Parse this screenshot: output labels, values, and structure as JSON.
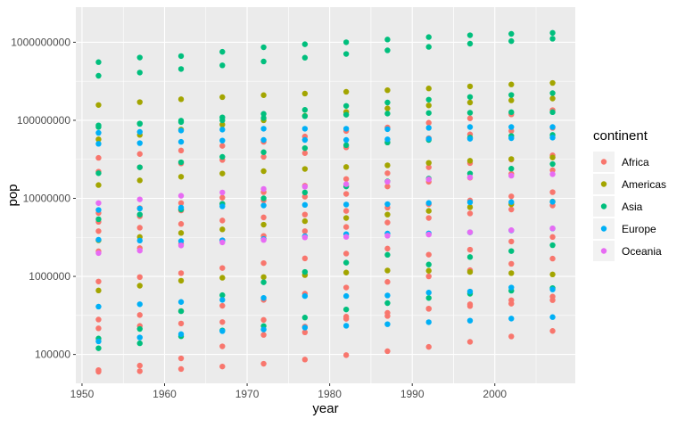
{
  "chart_data": {
    "type": "scatter",
    "xlabel": "year",
    "ylabel": "pop",
    "xlim": [
      1949.25,
      2009.75
    ],
    "ylim_log10": [
      4.63,
      9.45
    ],
    "y_scale": "log10",
    "grid": true,
    "legend_position": "right",
    "legend_title": "continent",
    "x_ticks": [
      "1950",
      "1960",
      "1970",
      "1980",
      "1990",
      "2000"
    ],
    "x_tick_values": [
      1950,
      1960,
      1970,
      1980,
      1990,
      2000
    ],
    "y_ticks": [
      "100000",
      "1000000",
      "10000000",
      "100000000",
      "1000000000"
    ],
    "y_tick_values": [
      100000.0,
      1000000.0,
      10000000.0,
      100000000.0,
      1000000000.0
    ],
    "x": [
      1952,
      1957,
      1962,
      1967,
      1972,
      1977,
      1982,
      1987,
      1992,
      1997,
      2002,
      2007
    ],
    "series": [
      {
        "name": "Africa",
        "color": "#F8766D",
        "rows": [
          [
            33000000.0,
            37000000.0,
            41000000.0,
            47000000.0,
            53000000.0,
            62000000.0,
            73000000.0,
            81000000.0,
            93000000.0,
            106000000.0,
            119000000.0,
            135000000.0
          ],
          [
            22000000.0,
            25000000.0,
            28000000.0,
            31000000.0,
            34000000.0,
            38000000.0,
            45000000.0,
            52000000.0,
            59000000.0,
            66000000.0,
            73000000.0,
            80000000.0
          ],
          [
            6500000.0,
            7500000.0,
            8700000.0,
            10200000.0,
            12000000.0,
            14500000.0,
            17700000.0,
            21000000.0,
            25000000.0,
            28300000.0,
            31400000.0,
            35600000.0
          ],
          [
            5000000.0,
            5900000.0,
            7000000.0,
            8500000.0,
            9400000.0,
            10500000.0,
            11400000.0,
            14200000.0,
            16300000.0,
            18400000.0,
            20600000.0,
            22900000.0
          ],
          [
            3800000.0,
            4200000.0,
            4700000.0,
            5200000.0,
            5700000.0,
            6200000.0,
            6900000.0,
            7600000.0,
            8400000.0,
            9400000.0,
            10600000.0,
            12000000.0
          ],
          [
            2100000.0,
            2300000.0,
            2600000.0,
            2900000.0,
            3300000.0,
            3800000.0,
            4300000.0,
            4900000.0,
            5600000.0,
            6400000.0,
            7200000.0,
            8100000.0
          ],
          [
            860000.0,
            980000.0,
            1100000.0,
            1280000.0,
            1480000.0,
            1700000.0,
            1960000.0,
            2270000.0,
            1900000.0,
            2200000.0,
            2800000.0,
            3200000.0
          ],
          [
            280000.0,
            320000.0,
            360000.0,
            420000.0,
            500000.0,
            600000.0,
            720000.0,
            850000.0,
            1000000.0,
            1200000.0,
            1450000.0,
            1690000.0
          ],
          [
            216000.0,
            232000.0,
            249000.0,
            260000.0,
            277000.0,
            192000.0,
            286000.0,
            341000.0,
            387000.0,
            439000.0,
            495000.0,
            551000.0
          ],
          [
            63000.0,
            72000.0,
            89000.0,
            127000.0,
            178000.0,
            228000.0,
            305000.0,
            311000.0,
            384000.0,
            417000.0,
            447000.0,
            496000.0
          ],
          [
            60000.0,
            61000.0,
            65000.0,
            70000.0,
            76000.0,
            86000.0,
            98000.0,
            110000.0,
            125000.0,
            145000.0,
            170000.0,
            200000.0
          ]
        ]
      },
      {
        "name": "Americas",
        "color": "#A3A500",
        "rows": [
          [
            157000000.0,
            171000000.0,
            186000000.0,
            198000000.0,
            210000000.0,
            220000000.0,
            232000000.0,
            243000000.0,
            256000000.0,
            272000000.0,
            288000000.0,
            301000000.0
          ],
          [
            57000000.0,
            65000000.0,
            76000000.0,
            88000000.0,
            100000000.0,
            114000000.0,
            128000000.0,
            142000000.0,
            155000000.0,
            169000000.0,
            180000000.0,
            190000000.0
          ],
          [
            14800000.0,
            17000000.0,
            18900000.0,
            20800000.0,
            22300000.0,
            23800000.0,
            25200000.0,
            26500000.0,
            28500000.0,
            30300000.0,
            31900000.0,
            33400000.0
          ],
          [
            2900000.0,
            3200000.0,
            3600000.0,
            4000000.0,
            4600000.0,
            5100000.0,
            5600000.0,
            6200000.0,
            6900000.0,
            7700000.0,
            8400000.0,
            9100000.0
          ],
          [
            660000.0,
            760000.0,
            880000.0,
            960000.0,
            980000.0,
            1040000.0,
            1120000.0,
            1190000.0,
            1180000.0,
            1140000.0,
            1100000.0,
            1060000.0
          ]
        ]
      },
      {
        "name": "Asia",
        "color": "#00BF7D",
        "rows": [
          [
            556000000.0,
            637000000.0,
            665000000.0,
            754000000.0,
            862000000.0,
            943000000.0,
            1000000000.0,
            1084000000.0,
            1165000000.0,
            1230000000.0,
            1280000000.0,
            1319000000.0
          ],
          [
            372000000.0,
            409000000.0,
            454000000.0,
            506000000.0,
            567000000.0,
            634000000.0,
            708000000.0,
            788000000.0,
            872000000.0,
            959000000.0,
            1034000000.0,
            1110000000.0
          ],
          [
            82000000.0,
            90000000.0,
            99000000.0,
            109000000.0,
            121000000.0,
            136000000.0,
            153000000.0,
            169000000.0,
            184000000.0,
            199000000.0,
            211000000.0,
            223000000.0
          ],
          [
            86000000.0,
            91000000.0,
            95000000.0,
            100000000.0,
            107000000.0,
            113000000.0,
            118000000.0,
            122000000.0,
            124000000.0,
            125000000.0,
            127000000.0,
            127000000.0
          ],
          [
            21000000.0,
            25000000.0,
            29000000.0,
            34000000.0,
            39000000.0,
            44000000.0,
            48000000.0,
            52000000.0,
            56000000.0,
            60000000.0,
            63000000.0,
            65000000.0
          ],
          [
            5400000.0,
            6200000.0,
            7200000.0,
            8500000.0,
            10000000.0,
            11900000.0,
            14200000.0,
            16500000.0,
            17900000.0,
            20800000.0,
            24000000.0,
            27500000.0
          ],
          [
            160000.0,
            212000.0,
            358000.0,
            575000.0,
            841000.0,
            1140000.0,
            1500000.0,
            1890000.0,
            1420000.0,
            1770000.0,
            2110000.0,
            2510000.0
          ],
          [
            120000.0,
            139000.0,
            171000.0,
            203000.0,
            231000.0,
            297000.0,
            377000.0,
            455000.0,
            529000.0,
            599000.0,
            656000.0,
            708000.0
          ]
        ]
      },
      {
        "name": "Europe",
        "color": "#00B0F6",
        "rows": [
          [
            69000000.0,
            71000000.0,
            74000000.0,
            76000000.0,
            78000000.0,
            78000000.0,
            78000000.0,
            77000000.0,
            80000000.0,
            82000000.0,
            82000000.0,
            82000000.0
          ],
          [
            50000000.0,
            51000000.0,
            53000000.0,
            55000000.0,
            56000000.0,
            56000000.0,
            56000000.0,
            57000000.0,
            58000000.0,
            58000000.0,
            59000000.0,
            60000000.0
          ],
          [
            7100000.0,
            7400000.0,
            7600000.0,
            7900000.0,
            8100000.0,
            8250000.0,
            8330000.0,
            8420000.0,
            8720000.0,
            8900000.0,
            8950000.0,
            9030000.0
          ],
          [
            2950000.0,
            2880000.0,
            2830000.0,
            2900000.0,
            3020000.0,
            3270000.0,
            3480000.0,
            3540000.0,
            3560000.0,
            3670000.0,
            3880000.0,
            4110000.0
          ],
          [
            410000.0,
            440000.0,
            470000.0,
            500000.0,
            530000.0,
            560000.0,
            560000.0,
            570000.0,
            620000.0,
            640000.0,
            720000.0,
            680000.0
          ],
          [
            147000.0,
            165000.0,
            182000.0,
            199000.0,
            209000.0,
            221000.0,
            233000.0,
            244000.0,
            259000.0,
            271000.0,
            288000.0,
            301000.0
          ]
        ]
      },
      {
        "name": "Oceania",
        "color": "#E76BF3",
        "rows": [
          [
            8700000.0,
            9700000.0,
            10800000.0,
            11900000.0,
            13200000.0,
            14100000.0,
            15200000.0,
            16300000.0,
            17500000.0,
            18600000.0,
            19500000.0,
            20400000.0
          ],
          [
            1990000.0,
            2140000.0,
            2490000.0,
            2730000.0,
            2930000.0,
            3160000.0,
            3210000.0,
            3320000.0,
            3440000.0,
            3680000.0,
            3910000.0,
            4120000.0
          ]
        ]
      }
    ]
  }
}
